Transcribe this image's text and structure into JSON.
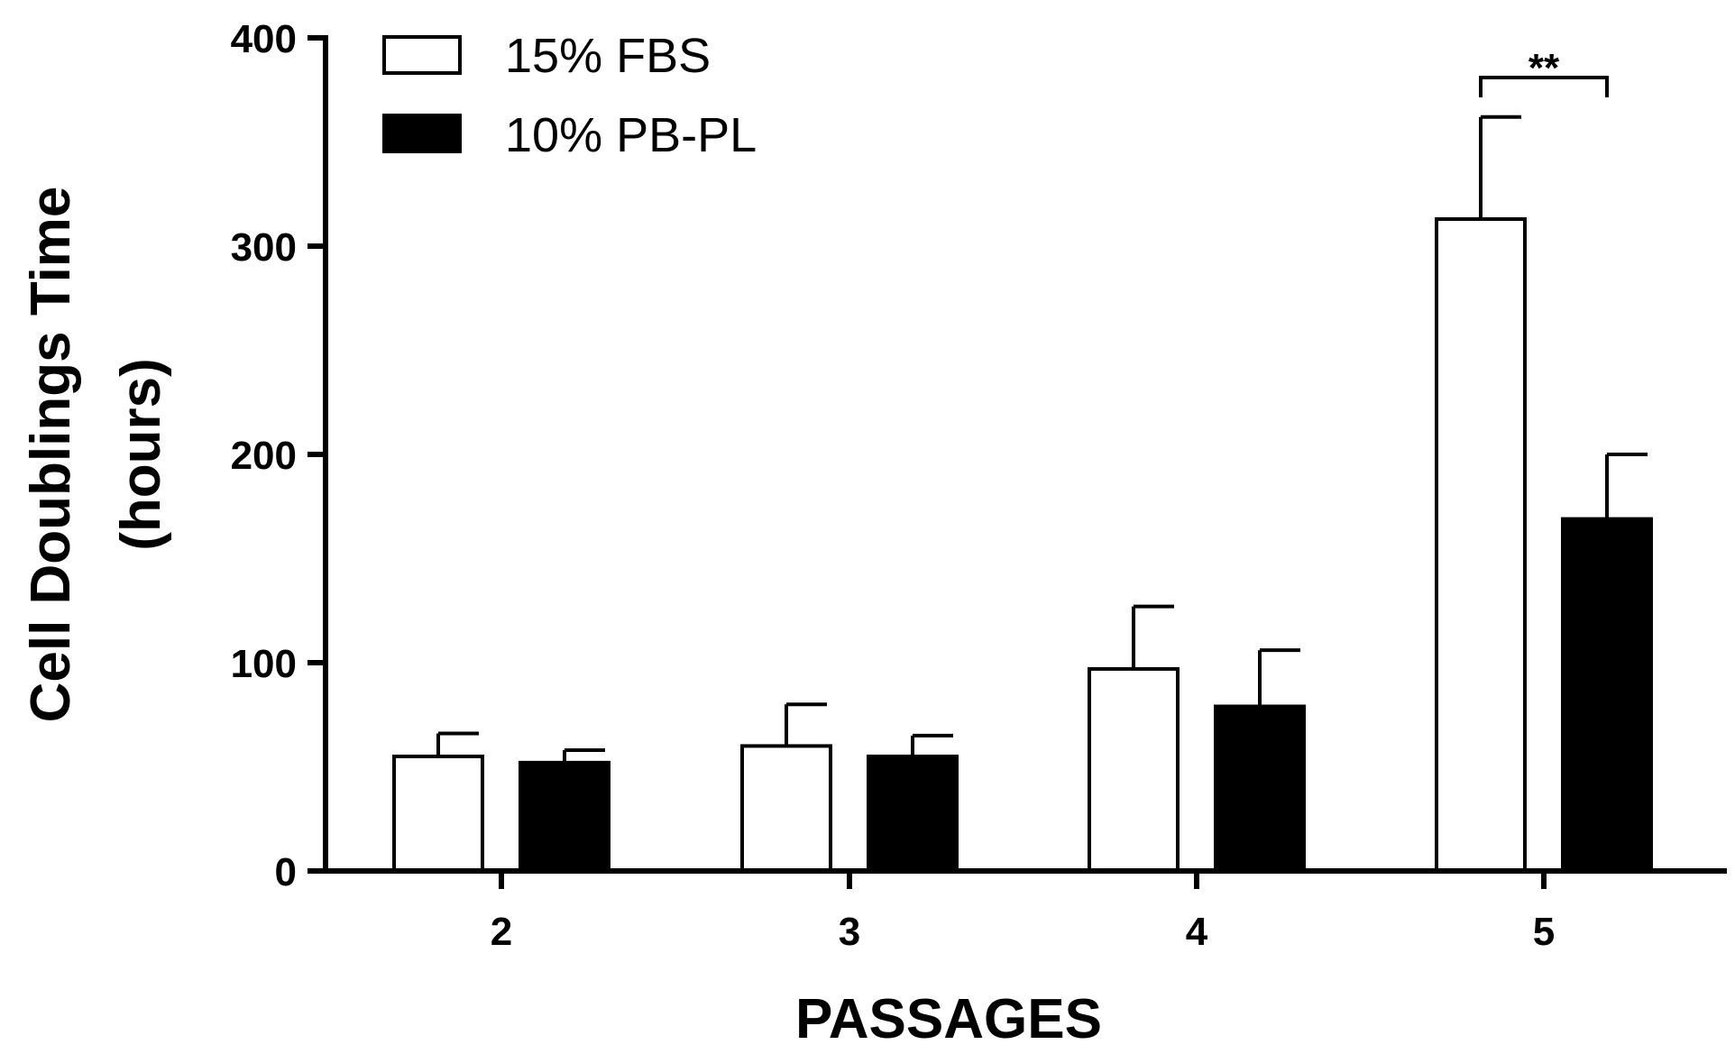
{
  "chart_data": {
    "type": "bar",
    "xlabel": "PASSAGES",
    "ylabel_line1": "Cell Doublings Time",
    "ylabel_line2": "(hours)",
    "ylim": [
      0,
      400
    ],
    "yticks": [
      "0",
      "100",
      "200",
      "300",
      "400"
    ],
    "categories": [
      "2",
      "3",
      "4",
      "5"
    ],
    "series": [
      {
        "name": "15% FBS",
        "values": [
          55,
          60,
          97,
          313
        ],
        "errors": [
          11,
          20,
          30,
          49
        ],
        "fill": "#ffffff"
      },
      {
        "name": "10% PB-PL",
        "values": [
          52,
          55,
          79,
          169
        ],
        "errors": [
          6,
          10,
          27,
          31
        ],
        "fill": "#000000"
      }
    ],
    "legend_position": "top-left",
    "grid": false,
    "annotations": [
      {
        "text": "**",
        "category": "5"
      }
    ]
  }
}
